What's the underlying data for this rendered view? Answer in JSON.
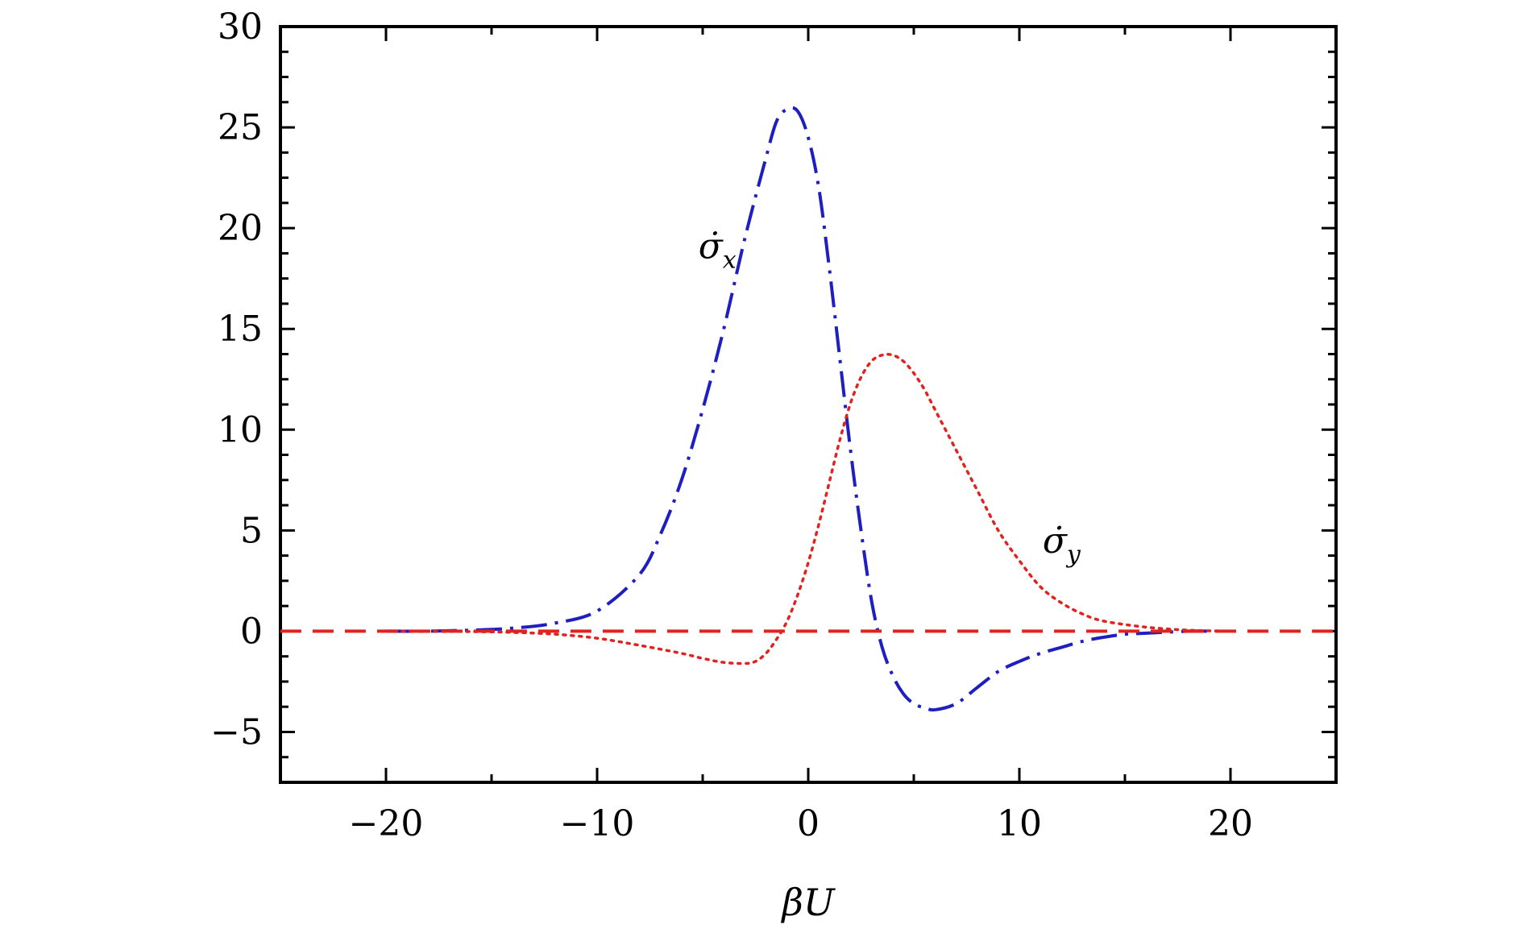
{
  "chart_data": {
    "type": "line",
    "title": "",
    "xlabel": "βU",
    "ylabel": "",
    "xlim": [
      -25,
      25
    ],
    "ylim": [
      -7.5,
      30
    ],
    "xticks": [
      -20,
      -10,
      0,
      10,
      20
    ],
    "xtick_labels": [
      "−20",
      "−10",
      "0",
      "10",
      "20"
    ],
    "yticks": [
      -5,
      0,
      5,
      10,
      15,
      20,
      25,
      30
    ],
    "ytick_labels": [
      "−5",
      "0",
      "5",
      "10",
      "15",
      "20",
      "25",
      "30"
    ],
    "grid": false,
    "legend": "none",
    "series": [
      {
        "name": "σ̇x",
        "label_base": "σ̇",
        "label_sub": "x",
        "label_at": [
          -5.2,
          18.5
        ],
        "color": "#1f1fbf",
        "style": "dash-dot",
        "x": [
          -20,
          -18,
          -16,
          -14,
          -12,
          -10,
          -8,
          -7,
          -6,
          -5,
          -4,
          -3,
          -2,
          -1.5,
          -1,
          -0.5,
          0,
          0.5,
          1,
          1.5,
          2,
          2.5,
          3,
          3.5,
          4,
          4.5,
          5,
          5.5,
          6,
          7,
          8,
          9,
          10,
          11,
          12,
          13,
          14,
          15,
          16,
          18,
          19
        ],
        "y": [
          0,
          0,
          0.05,
          0.15,
          0.4,
          1.0,
          2.8,
          4.8,
          7.5,
          11.0,
          15.0,
          19.5,
          23.5,
          25.3,
          25.9,
          25.8,
          24.5,
          22.0,
          18.0,
          13.5,
          9.0,
          5.0,
          1.5,
          -0.8,
          -2.2,
          -3.1,
          -3.6,
          -3.8,
          -3.9,
          -3.6,
          -2.8,
          -2.0,
          -1.5,
          -1.1,
          -0.8,
          -0.5,
          -0.3,
          -0.15,
          -0.1,
          0,
          0
        ]
      },
      {
        "name": "σ̇y",
        "label_base": "σ̇",
        "label_sub": "y",
        "label_at": [
          11.1,
          3.9
        ],
        "color": "#e0231f",
        "style": "dotted",
        "x": [
          -20,
          -16,
          -14,
          -12,
          -10,
          -8,
          -6,
          -5,
          -4,
          -3,
          -2.5,
          -2,
          -1.5,
          -1,
          -0.5,
          0,
          0.5,
          1,
          1.5,
          2,
          2.5,
          3,
          3.5,
          4,
          4.5,
          5,
          5.5,
          6,
          7,
          8,
          9,
          10,
          11,
          12,
          13,
          14,
          16,
          18,
          20
        ],
        "y": [
          0,
          -0.02,
          -0.06,
          -0.15,
          -0.35,
          -0.7,
          -1.1,
          -1.35,
          -1.55,
          -1.6,
          -1.5,
          -1.1,
          -0.4,
          0.5,
          1.8,
          3.4,
          5.3,
          7.4,
          9.5,
          11.3,
          12.6,
          13.4,
          13.7,
          13.7,
          13.4,
          12.8,
          12.0,
          11.0,
          9.0,
          7.0,
          5.0,
          3.5,
          2.2,
          1.4,
          0.85,
          0.5,
          0.2,
          0.05,
          0
        ]
      },
      {
        "name": "zero",
        "color": "#e0231f",
        "style": "dashed",
        "x": [
          -25,
          25
        ],
        "y": [
          0,
          0
        ]
      }
    ]
  }
}
